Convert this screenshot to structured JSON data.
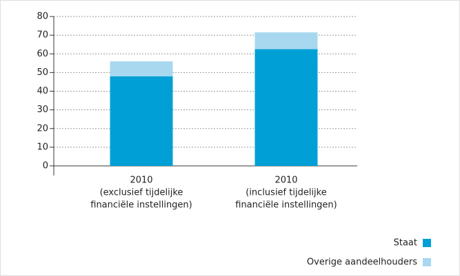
{
  "chart_data": {
    "type": "stacked_bar",
    "categories": [
      [
        "2010",
        "(exclusief tijdelijke",
        "financiële instellingen)"
      ],
      [
        "2010",
        "(inclusief tijdelijke",
        "financiële instellingen)"
      ]
    ],
    "series": [
      {
        "name": "Staat",
        "color": "#00a0d6",
        "values": [
          48,
          62.5
        ]
      },
      {
        "name": "Overige aandeelhouders",
        "color": "#a8d8ef",
        "values": [
          8,
          9
        ]
      }
    ],
    "ylim": [
      0,
      80
    ],
    "yticks": [
      0,
      10,
      20,
      30,
      40,
      50,
      60,
      70,
      80
    ],
    "grid": true,
    "legend": "bottom-right"
  }
}
